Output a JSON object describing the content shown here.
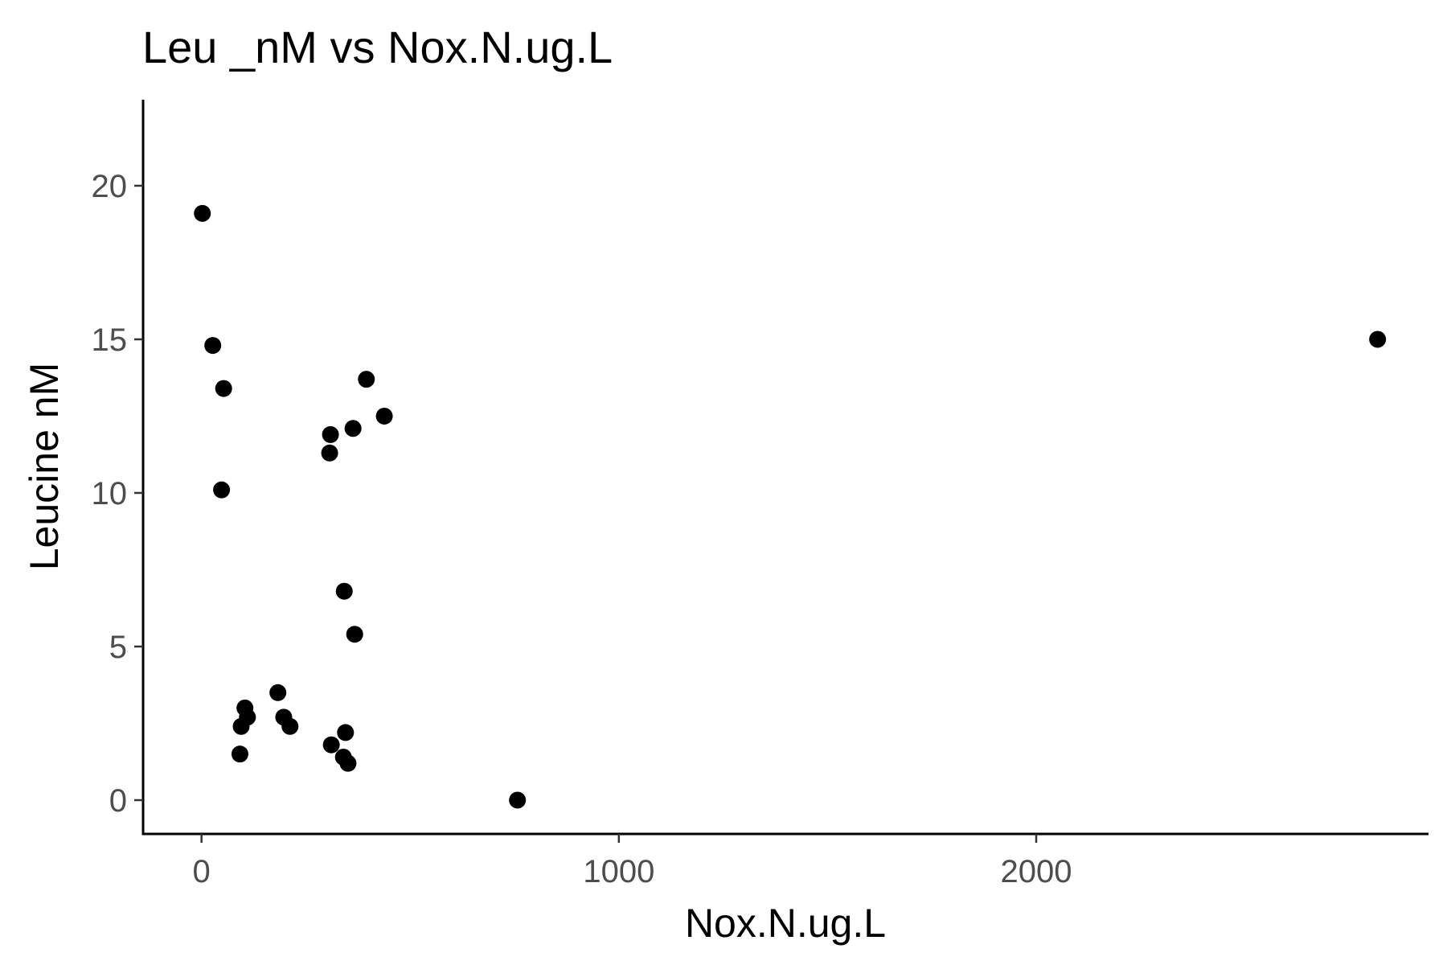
{
  "chart_data": {
    "type": "scatter",
    "title": "Leu _nM vs Nox.N.ug.L",
    "xlabel": "Nox.N.ug.L",
    "ylabel": "Leucine nM",
    "xlim": [
      -140,
      2940
    ],
    "ylim": [
      -1.1,
      22.8
    ],
    "x_ticks": [
      0,
      1000,
      2000
    ],
    "x_tick_labels": [
      "0",
      "1000",
      "2000"
    ],
    "y_ticks": [
      0,
      5,
      10,
      15,
      20
    ],
    "y_tick_labels": [
      "0",
      "5",
      "10",
      "15",
      "20"
    ],
    "grid": false,
    "legend": "none",
    "point_color": "#000000",
    "points": [
      {
        "x": 2,
        "y": 19.1
      },
      {
        "x": 27,
        "y": 14.8
      },
      {
        "x": 53,
        "y": 13.4
      },
      {
        "x": 48,
        "y": 10.1
      },
      {
        "x": 92,
        "y": 1.5
      },
      {
        "x": 95,
        "y": 2.4
      },
      {
        "x": 104,
        "y": 3.0
      },
      {
        "x": 110,
        "y": 2.7
      },
      {
        "x": 183,
        "y": 3.5
      },
      {
        "x": 197,
        "y": 2.7
      },
      {
        "x": 212,
        "y": 2.4
      },
      {
        "x": 307,
        "y": 11.3
      },
      {
        "x": 309,
        "y": 11.9
      },
      {
        "x": 311,
        "y": 1.8
      },
      {
        "x": 340,
        "y": 1.4
      },
      {
        "x": 342,
        "y": 6.8
      },
      {
        "x": 345,
        "y": 2.2
      },
      {
        "x": 351,
        "y": 1.2
      },
      {
        "x": 363,
        "y": 12.1
      },
      {
        "x": 367,
        "y": 5.4
      },
      {
        "x": 395,
        "y": 13.7
      },
      {
        "x": 438,
        "y": 12.5
      },
      {
        "x": 757,
        "y": 0.0
      },
      {
        "x": 2818,
        "y": 15.0
      }
    ]
  }
}
